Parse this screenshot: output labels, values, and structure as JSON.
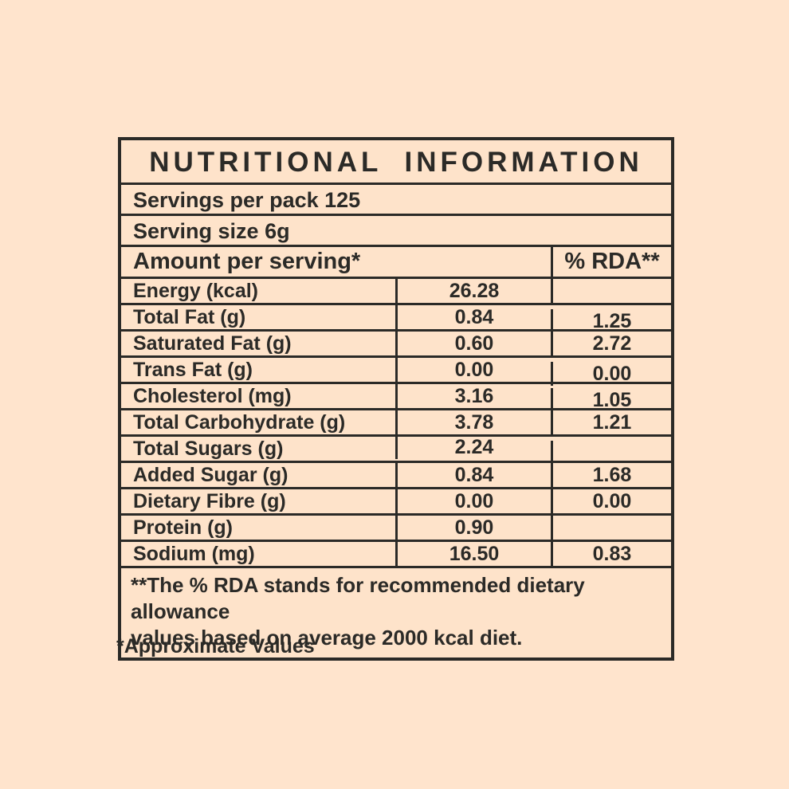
{
  "colors": {
    "background": "#ffe4cd",
    "panel_fill": "#fee3ca",
    "ink": "#2b2a27"
  },
  "table": {
    "title": "NUTRITIONAL INFORMATION",
    "servings_per_pack": "Servings per pack 125",
    "serving_size": "Serving size 6g",
    "header": {
      "amount": "Amount per serving*",
      "rda": "% RDA**"
    },
    "rows": [
      {
        "label": "Energy (kcal)",
        "value": "26.28",
        "rda": ""
      },
      {
        "label": "Total Fat (g)",
        "value": "0.84",
        "rda": "1.25"
      },
      {
        "label": "Saturated Fat (g)",
        "value": "0.60",
        "rda": "2.72"
      },
      {
        "label": "Trans Fat (g)",
        "value": "0.00",
        "rda": "0.00"
      },
      {
        "label": "Cholesterol (mg)",
        "value": "3.16",
        "rda": "1.05"
      },
      {
        "label": "Total Carbohydrate (g)",
        "value": "3.78",
        "rda": "1.21"
      },
      {
        "label": "Total Sugars (g)",
        "value": "2.24",
        "rda": ""
      },
      {
        "label": "Added  Sugar (g)",
        "value": "0.84",
        "rda": "1.68"
      },
      {
        "label": "Dietary Fibre (g)",
        "value": "0.00",
        "rda": "0.00"
      },
      {
        "label": "Protein (g)",
        "value": "0.90",
        "rda": ""
      },
      {
        "label": "Sodium (mg)",
        "value": "16.50",
        "rda": "0.83"
      }
    ],
    "footnote_line1": "**The % RDA stands for recommended dietary allowance",
    "footnote_line2": "values based on average 2000 kcal diet."
  },
  "approximate_values_note": "*Approximate Values"
}
